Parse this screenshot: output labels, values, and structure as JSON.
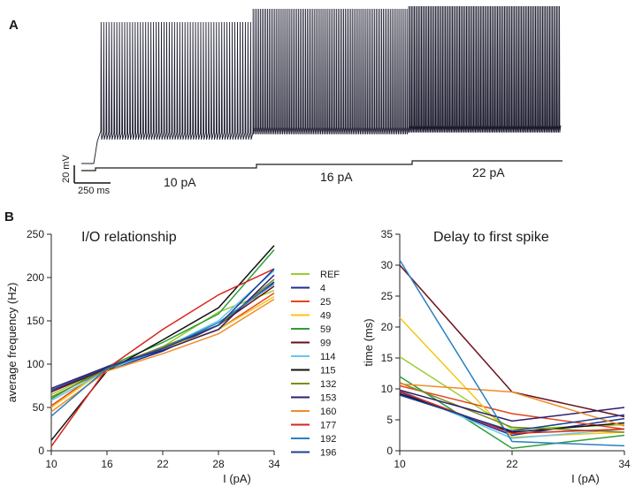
{
  "figure": {
    "panel_a": "A",
    "panel_b": "B",
    "scale_bar_v": "20 mV",
    "scale_bar_h": "250 ms",
    "stimuli": [
      "10 pA",
      "16 pA",
      "22 pA"
    ]
  },
  "chart_data": [
    {
      "type": "line",
      "title": "I/O relationship",
      "xlabel": "I (pA)",
      "ylabel": "average frequency (Hz)",
      "x": [
        10,
        16,
        22,
        28,
        34
      ],
      "xticks": [
        10,
        16,
        22,
        28,
        34
      ],
      "yticks": [
        0,
        50,
        100,
        150,
        200,
        250
      ],
      "xlim": [
        10,
        34
      ],
      "ylim": [
        0,
        250
      ],
      "series": [
        {
          "name": "REF",
          "color": "#9acd32",
          "values": [
            65,
            95,
            120,
            160,
            185
          ]
        },
        {
          "name": "4",
          "color": "#1f2d8a",
          "values": [
            70,
            93,
            115,
            145,
            195
          ]
        },
        {
          "name": "25",
          "color": "#e8441c",
          "values": [
            52,
            97,
            118,
            140,
            182
          ]
        },
        {
          "name": "49",
          "color": "#f5c518",
          "values": [
            50,
            95,
            118,
            140,
            178
          ]
        },
        {
          "name": "59",
          "color": "#2e9e3a",
          "values": [
            60,
            97,
            125,
            158,
            232
          ]
        },
        {
          "name": "99",
          "color": "#6b0f1a",
          "values": [
            68,
            95,
            120,
            145,
            190
          ]
        },
        {
          "name": "114",
          "color": "#66c8ef",
          "values": [
            58,
            93,
            118,
            150,
            208
          ]
        },
        {
          "name": "115",
          "color": "#111111",
          "values": [
            12,
            92,
            128,
            165,
            237
          ]
        },
        {
          "name": "132",
          "color": "#7a8c1e",
          "values": [
            62,
            94,
            120,
            145,
            198
          ]
        },
        {
          "name": "153",
          "color": "#2c1f6e",
          "values": [
            72,
            97,
            116,
            140,
            203
          ]
        },
        {
          "name": "160",
          "color": "#f28c28",
          "values": [
            45,
            92,
            112,
            135,
            175
          ]
        },
        {
          "name": "177",
          "color": "#d7261e",
          "values": [
            5,
            95,
            140,
            180,
            210
          ]
        },
        {
          "name": "192",
          "color": "#2a7fbf",
          "values": [
            40,
            95,
            118,
            148,
            193
          ]
        },
        {
          "name": "196",
          "color": "#1c3f95",
          "values": [
            70,
            96,
            118,
            145,
            210
          ]
        }
      ]
    },
    {
      "type": "line",
      "title": "Delay to first spike",
      "xlabel": "I (pA)",
      "ylabel": "time (ms)",
      "x": [
        10,
        22,
        34
      ],
      "xticks": [
        10,
        22,
        34
      ],
      "yticks": [
        0,
        5,
        10,
        15,
        20,
        25,
        30,
        35
      ],
      "xlim": [
        10,
        34
      ],
      "ylim": [
        0,
        35
      ],
      "series": [
        {
          "name": "REF",
          "color": "#9acd32",
          "values": [
            15.2,
            3.5,
            4.2
          ]
        },
        {
          "name": "4",
          "color": "#1f2d8a",
          "values": [
            9.5,
            2.5,
            5.2
          ]
        },
        {
          "name": "25",
          "color": "#e8441c",
          "values": [
            10.5,
            6.0,
            3.5
          ]
        },
        {
          "name": "49",
          "color": "#f5c518",
          "values": [
            21.5,
            2.2,
            3.0
          ]
        },
        {
          "name": "59",
          "color": "#2e9e3a",
          "values": [
            12.0,
            0.4,
            2.5
          ]
        },
        {
          "name": "99",
          "color": "#6b0f1a",
          "values": [
            30.0,
            9.5,
            5.5
          ]
        },
        {
          "name": "114",
          "color": "#66c8ef",
          "values": [
            9.8,
            2.0,
            3.5
          ]
        },
        {
          "name": "115",
          "color": "#111111",
          "values": [
            9.2,
            3.0,
            4.5
          ]
        },
        {
          "name": "132",
          "color": "#7a8c1e",
          "values": [
            11.0,
            3.8,
            3.0
          ]
        },
        {
          "name": "153",
          "color": "#2c1f6e",
          "values": [
            9.8,
            4.8,
            7.0
          ]
        },
        {
          "name": "160",
          "color": "#f28c28",
          "values": [
            10.8,
            9.5,
            4.0
          ]
        },
        {
          "name": "177",
          "color": "#d7261e",
          "values": [
            9.6,
            2.8,
            3.5
          ]
        },
        {
          "name": "192",
          "color": "#2a7fbf",
          "values": [
            30.8,
            1.5,
            0.8
          ]
        },
        {
          "name": "196",
          "color": "#1c3f95",
          "values": [
            9.0,
            3.2,
            5.8
          ]
        }
      ]
    }
  ]
}
